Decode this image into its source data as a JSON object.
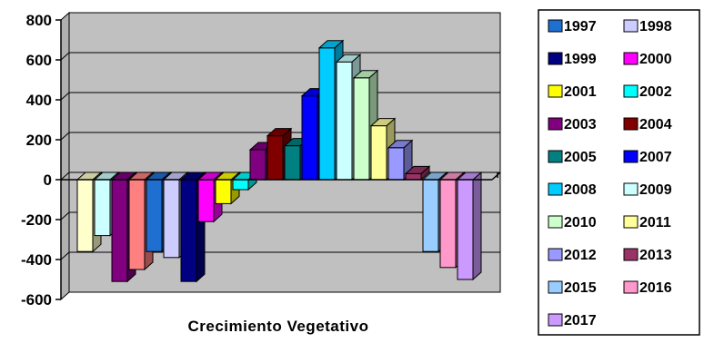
{
  "chart_data": {
    "type": "bar",
    "title": "",
    "xlabel": "Crecimiento Vegetativo",
    "ylabel": "",
    "ylim": [
      -600,
      800
    ],
    "yticks": [
      "800",
      "600",
      "400",
      "200",
      "0",
      "-200",
      "-400",
      "-600"
    ],
    "grid": true,
    "legend_position": "right",
    "render_order": [
      "2011",
      "2009",
      "2003",
      "2016",
      "2008",
      "2010",
      "1999",
      "2000",
      "2001",
      "2002",
      "2013",
      "2004",
      "2005",
      "2007",
      "1997",
      "2015",
      "2012",
      "2011b",
      "2015b",
      "2016b",
      "2017"
    ],
    "series": [
      {
        "name": "1997",
        "color": "#1f6fd1"
      },
      {
        "name": "1998",
        "color": "#ccccff"
      },
      {
        "name": "1999",
        "color": "#000080"
      },
      {
        "name": "2000",
        "color": "#ff00ff"
      },
      {
        "name": "2001",
        "color": "#ffff00"
      },
      {
        "name": "2002",
        "color": "#00ffff"
      },
      {
        "name": "2003",
        "color": "#800080"
      },
      {
        "name": "2004",
        "color": "#800000"
      },
      {
        "name": "2005",
        "color": "#008080"
      },
      {
        "name": "2007",
        "color": "#0000ff"
      },
      {
        "name": "2008",
        "color": "#00ccff"
      },
      {
        "name": "2009",
        "color": "#ccffff"
      },
      {
        "name": "2010",
        "color": "#ccffcc"
      },
      {
        "name": "2011",
        "color": "#ffff99"
      },
      {
        "name": "2012",
        "color": "#9999ff"
      },
      {
        "name": "2013",
        "color": "#993366"
      },
      {
        "name": "2015",
        "color": "#99ccff"
      },
      {
        "name": "2016",
        "color": "#ff99cc"
      },
      {
        "name": "2017",
        "color": "#cc99ff"
      }
    ],
    "bars": [
      {
        "color": "#ffffcc",
        "value": -360
      },
      {
        "color": "#ccffff",
        "value": -280
      },
      {
        "color": "#800080",
        "value": -510
      },
      {
        "color": "#ff8080",
        "value": -450
      },
      {
        "color": "#1f6fd1",
        "value": -360
      },
      {
        "color": "#ccccff",
        "value": -390
      },
      {
        "color": "#000080",
        "value": -510
      },
      {
        "color": "#ff00ff",
        "value": -210
      },
      {
        "color": "#ffff00",
        "value": -120
      },
      {
        "color": "#00ffff",
        "value": -50
      },
      {
        "color": "#800080",
        "value": 150
      },
      {
        "color": "#800000",
        "value": 220
      },
      {
        "color": "#008080",
        "value": 170
      },
      {
        "color": "#0000ff",
        "value": 420
      },
      {
        "color": "#00ccff",
        "value": 660
      },
      {
        "color": "#ccffff",
        "value": 590
      },
      {
        "color": "#ccffcc",
        "value": 510
      },
      {
        "color": "#ffff99",
        "value": 270
      },
      {
        "color": "#9999ff",
        "value": 160
      },
      {
        "color": "#993366",
        "value": 30
      },
      {
        "color": "#99ccff",
        "value": -360
      },
      {
        "color": "#ff99cc",
        "value": -440
      },
      {
        "color": "#cc99ff",
        "value": -500
      }
    ]
  }
}
